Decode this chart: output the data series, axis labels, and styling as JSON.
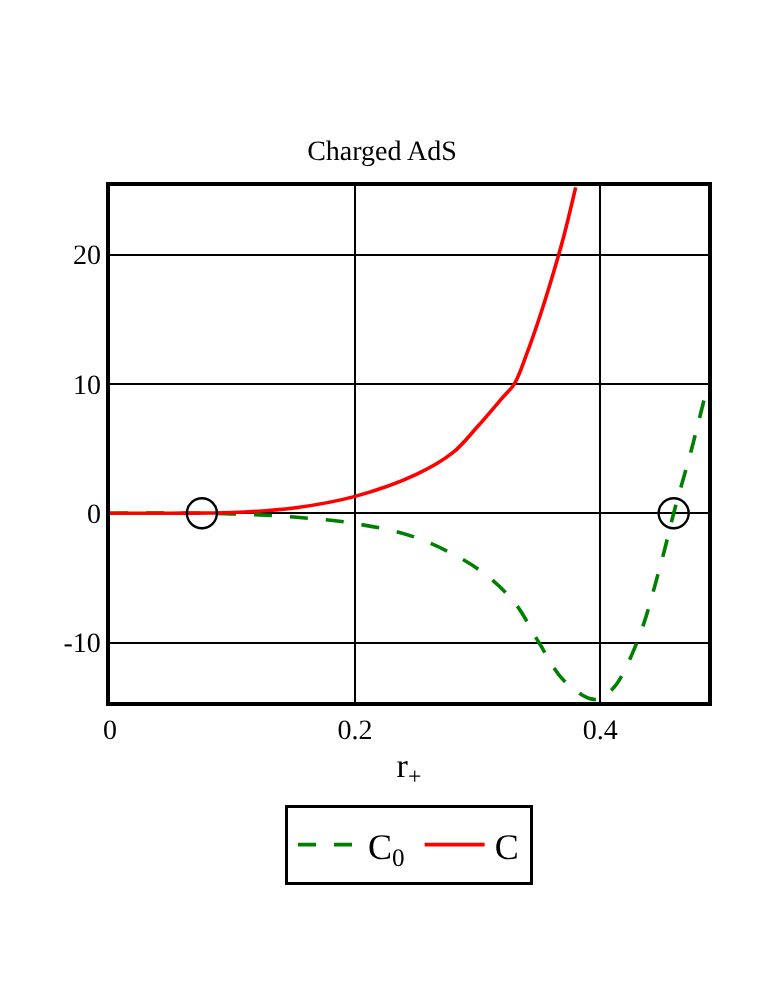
{
  "chart_data": {
    "type": "line",
    "title": "Charged AdS",
    "xlabel": "r$_{+}$",
    "xlim": [
      0,
      0.488
    ],
    "xticks": [
      0,
      0.2,
      0.4
    ],
    "ylim": [
      -14.6,
      25.3
    ],
    "yticks": [
      -10,
      0,
      10,
      20
    ],
    "grid": true,
    "legend": "bottom",
    "series": [
      {
        "name": "C$_{0}$",
        "color": "#008000",
        "line_style": "dashed",
        "x": [
          0,
          0.05,
          0.1,
          0.15,
          0.2,
          0.25,
          0.3,
          0.33,
          0.35,
          0.37,
          0.395,
          0.41,
          0.43,
          0.45,
          0.46,
          0.475,
          0.488
        ],
        "values": [
          0,
          0,
          -0.05,
          -0.3,
          -0.8,
          -1.9,
          -4.3,
          -6.9,
          -10,
          -12.9,
          -14.4,
          -13.6,
          -10,
          -3.75,
          0,
          5.1,
          10
        ]
      },
      {
        "name": "C",
        "color": "#ff0000",
        "line_style": "solid",
        "x": [
          0,
          0.05,
          0.1,
          0.15,
          0.2,
          0.25,
          0.28,
          0.3,
          0.32,
          0.33,
          0.34,
          0.35,
          0.36,
          0.37,
          0.38
        ],
        "values": [
          0,
          0,
          0.05,
          0.4,
          1.3,
          3,
          4.7,
          6.7,
          8.9,
          10,
          12.3,
          15,
          18,
          21.3,
          25.2
        ]
      },
      {
        "type": "scatter",
        "marker": "circle",
        "color": "#000000",
        "x": [
          0.075,
          0.46
        ],
        "values": [
          0,
          0
        ]
      }
    ]
  }
}
